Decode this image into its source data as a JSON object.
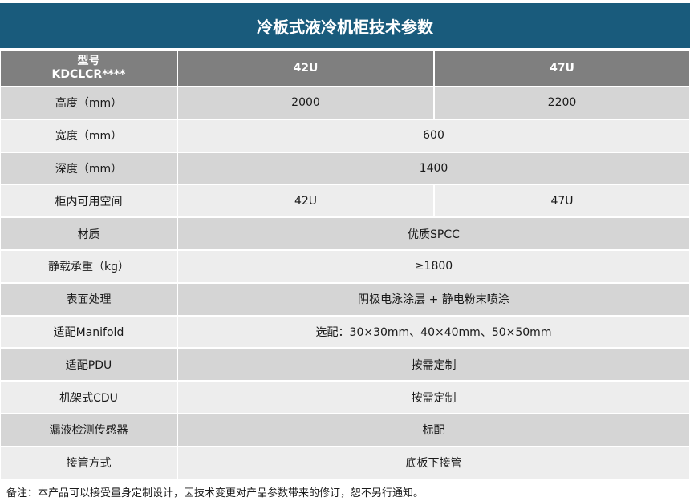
{
  "header": {
    "title": "冷板式液冷机柜技术参数"
  },
  "table": {
    "head": {
      "label_lines": [
        "型号",
        "KDCLCR****"
      ],
      "columns": [
        "42U",
        "47U"
      ]
    },
    "rows": [
      {
        "label": "高度（mm）",
        "values": [
          "2000",
          "2200"
        ]
      },
      {
        "label": "宽度（mm）",
        "values": [
          "600"
        ]
      },
      {
        "label": "深度（mm）",
        "values": [
          "1400"
        ]
      },
      {
        "label": "柜内可用空间",
        "values": [
          "42U",
          "47U"
        ]
      },
      {
        "label": "材质",
        "values": [
          "优质SPCC"
        ]
      },
      {
        "label": "静载承重（kg）",
        "values": [
          "≥1800"
        ]
      },
      {
        "label": "表面处理",
        "values": [
          "阴极电泳涂层 + 静电粉末喷涂"
        ]
      },
      {
        "label": "适配Manifold",
        "values": [
          "选配：30×30mm、40×40mm、50×50mm"
        ]
      },
      {
        "label": "适配PDU",
        "values": [
          "按需定制"
        ]
      },
      {
        "label": "机架式CDU",
        "values": [
          "按需定制"
        ]
      },
      {
        "label": "漏液检测传感器",
        "values": [
          "标配"
        ]
      },
      {
        "label": "接管方式",
        "values": [
          "底板下接管"
        ]
      }
    ]
  },
  "footer": {
    "note": "备注：本产品可以接受量身定制设计，因技术变更对产品参数带来的修订，恕不另行通知。"
  }
}
